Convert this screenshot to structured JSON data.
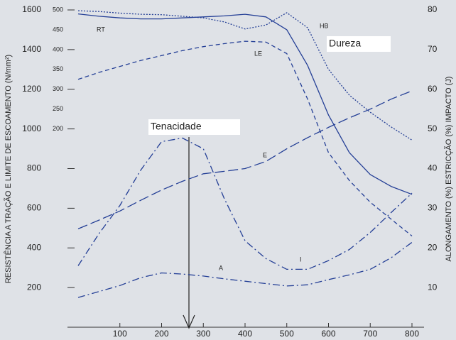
{
  "chart_data": {
    "type": "line",
    "y_label": "RESISTÊNCIA  A TRAÇÃO E LIMITE DE ESCOAMENTO (N/mm²)",
    "y2_label": "ALONGAMENTO (%) ESTRICÇÃO (%) IMPACTO (J)",
    "annotations": [
      "Dureza",
      "Tenacidade"
    ],
    "x": [
      0,
      50,
      100,
      150,
      200,
      250,
      300,
      350,
      400,
      450,
      500,
      550,
      600,
      650,
      700,
      750,
      800
    ],
    "xlim": [
      0,
      800
    ],
    "xticks": [
      100,
      200,
      300,
      400,
      500,
      600,
      700,
      800
    ],
    "ylim": [
      0,
      1600
    ],
    "yticks": [
      200,
      400,
      600,
      800,
      1000,
      1200,
      1400,
      1600
    ],
    "y3lim": [
      -300,
      500
    ],
    "y3ticks": [
      200,
      250,
      300,
      350,
      400,
      450,
      500
    ],
    "y2lim": [
      0,
      80
    ],
    "y2ticks": [
      10,
      20,
      30,
      40,
      50,
      60,
      70,
      80
    ],
    "series": [
      {
        "name": "RT",
        "color": "#243f96",
        "axis": "y",
        "values": [
          1580,
          1568,
          1560,
          1555,
          1555,
          1560,
          1565,
          1570,
          1578,
          1565,
          1500,
          1320,
          1070,
          880,
          770,
          710,
          670
        ]
      },
      {
        "name": "LE",
        "color": "#243f96",
        "axis": "y",
        "values": [
          1250,
          1285,
          1315,
          1345,
          1370,
          1395,
          1415,
          1430,
          1442,
          1438,
          1380,
          1150,
          880,
          740,
          630,
          545,
          460
        ]
      },
      {
        "name": "HB",
        "color": "#243f96",
        "axis": "y3",
        "values": [
          498,
          496,
          492,
          489,
          488,
          484,
          480,
          470,
          452,
          462,
          493,
          455,
          350,
          285,
          242,
          205,
          172
        ]
      },
      {
        "name": "E",
        "color": "#243f96",
        "axis": "y2",
        "values": [
          24.8,
          27,
          29.3,
          32,
          34.6,
          36.8,
          38.7,
          39.3,
          40,
          41.8,
          45,
          47.8,
          50.4,
          52.8,
          55,
          57.5,
          59.6
        ]
      },
      {
        "name": "I",
        "color": "#243f96",
        "axis": "y2",
        "values": [
          15.5,
          23.6,
          30.7,
          39.6,
          46.8,
          47.7,
          45,
          32.5,
          21.8,
          17.3,
          14.6,
          14.6,
          16.8,
          19.6,
          23.9,
          28.9,
          33.8
        ]
      },
      {
        "name": "A",
        "color": "#243f96",
        "axis": "y2",
        "values": [
          7.5,
          9,
          10.5,
          12.5,
          13.7,
          13.4,
          12.9,
          12.2,
          11.6,
          11,
          10.4,
          10.7,
          12,
          13.2,
          14.6,
          17.5,
          21.4
        ]
      }
    ]
  }
}
